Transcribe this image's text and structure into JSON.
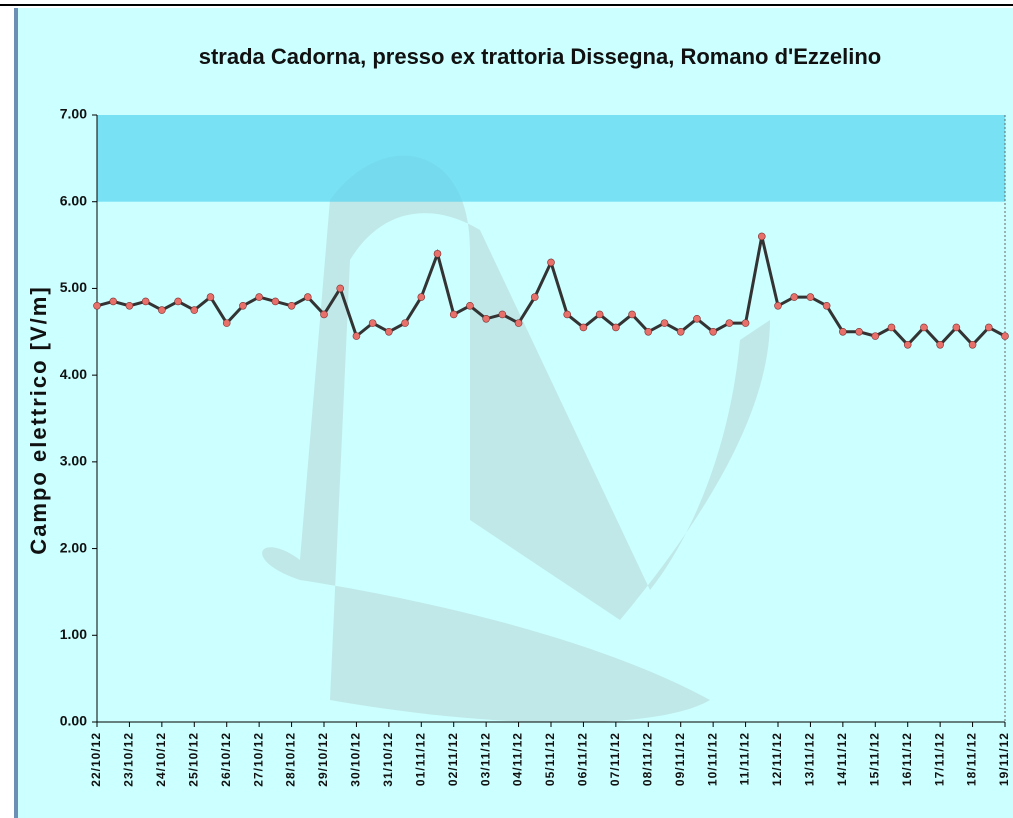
{
  "chart_data": {
    "type": "line",
    "title": "strada Cadorna, presso ex trattoria Dissegna, Romano d'Ezzelino",
    "y_label": "Campo elettrico [V/m]",
    "categories": [
      "22/10/12",
      null,
      "23/10/12",
      null,
      "24/10/12",
      null,
      "25/10/12",
      null,
      "26/10/12",
      null,
      "27/10/12",
      null,
      "28/10/12",
      null,
      "29/10/12",
      null,
      "30/10/12",
      null,
      "31/10/12",
      null,
      "01/11/12",
      null,
      "02/11/12",
      null,
      "03/11/12",
      null,
      "04/11/12",
      null,
      "05/11/12",
      null,
      "06/11/12",
      null,
      "07/11/12",
      null,
      "08/11/12",
      null,
      "09/11/12",
      null,
      "10/11/12",
      null,
      "11/11/12",
      null,
      "12/11/12",
      null,
      "13/11/12",
      null,
      "14/11/12",
      null,
      "15/11/12",
      null,
      "16/11/12",
      null,
      "17/11/12",
      null,
      "18/11/12",
      null,
      "19/11/12"
    ],
    "values": [
      4.8,
      4.85,
      4.8,
      4.85,
      4.75,
      4.85,
      4.75,
      4.9,
      4.6,
      4.8,
      4.9,
      4.85,
      4.8,
      4.9,
      4.7,
      5.0,
      4.45,
      4.6,
      4.5,
      4.6,
      4.9,
      5.4,
      4.7,
      4.8,
      4.65,
      4.7,
      4.6,
      4.9,
      5.3,
      4.7,
      4.55,
      4.7,
      4.55,
      4.7,
      4.5,
      4.6,
      4.5,
      4.65,
      4.5,
      4.6,
      4.6,
      5.6,
      4.8,
      4.9,
      4.9,
      4.8,
      4.5,
      4.5,
      4.45,
      4.55,
      4.35,
      4.55,
      4.35,
      4.55,
      4.35,
      4.55,
      4.45
    ],
    "color": "#333333",
    "marker_color": "#e8706a",
    "threshold_band": [
      6,
      7
    ],
    "band_color": "#55d4f0",
    "ylim": [
      0,
      7
    ],
    "yticks": [
      {
        "value": 0,
        "label": "0.00"
      },
      {
        "value": 1,
        "label": "1.00"
      },
      {
        "value": 2,
        "label": "2.00"
      },
      {
        "value": 3,
        "label": "3.00"
      },
      {
        "value": 4,
        "label": "4.00"
      },
      {
        "value": 5,
        "label": "5.00"
      },
      {
        "value": 6,
        "label": "6.00"
      },
      {
        "value": 7,
        "label": "7.00"
      }
    ]
  }
}
